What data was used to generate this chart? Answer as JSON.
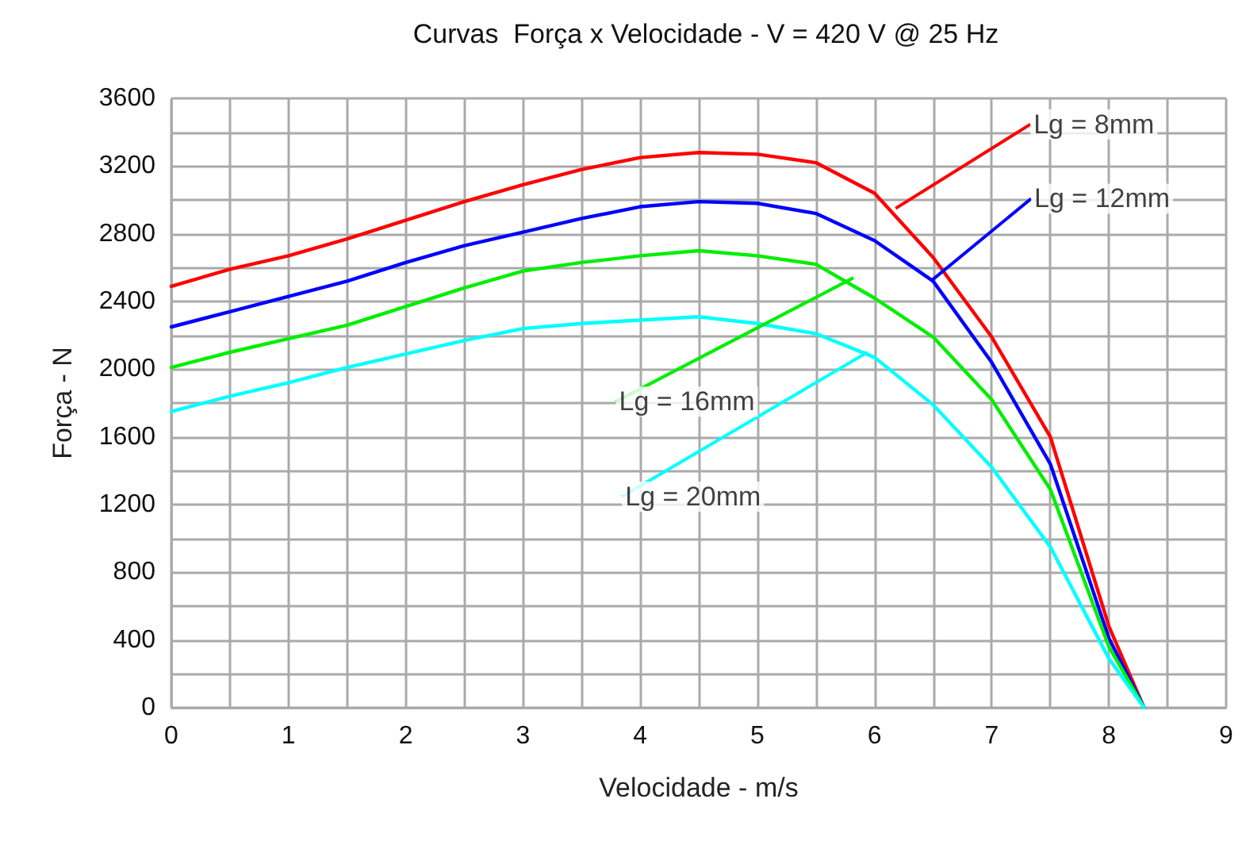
{
  "chart_data": {
    "type": "line",
    "title": "Curvas  Força x Velocidade - V = 420 V @ 25 Hz",
    "xlabel": "Velocidade - m/s",
    "ylabel": "Força - N",
    "x": [
      0,
      0.5,
      1,
      1.5,
      2,
      2.5,
      3,
      3.5,
      4,
      4.5,
      5,
      5.5,
      6,
      6.5,
      7,
      7.5,
      8,
      8.3
    ],
    "series": [
      {
        "color": "#ff0000",
        "values": [
          2490,
          2590,
          2670,
          2770,
          2880,
          2990,
          3090,
          3180,
          3250,
          3280,
          3270,
          3220,
          3040,
          2660,
          2190,
          1600,
          480,
          0
        ]
      },
      {
        "color": "#0000ff",
        "values": [
          2250,
          2340,
          2430,
          2520,
          2630,
          2730,
          2810,
          2890,
          2960,
          2990,
          2980,
          2920,
          2760,
          2520,
          2040,
          1440,
          410,
          0
        ]
      },
      {
        "color": "#00ee00",
        "values": [
          2010,
          2100,
          2180,
          2260,
          2370,
          2480,
          2580,
          2630,
          2670,
          2700,
          2670,
          2620,
          2420,
          2190,
          1820,
          1290,
          360,
          0
        ]
      },
      {
        "color": "#00ffff",
        "values": [
          1750,
          1840,
          1920,
          2010,
          2090,
          2170,
          2240,
          2270,
          2290,
          2310,
          2270,
          2210,
          2070,
          1790,
          1420,
          950,
          290,
          0
        ]
      }
    ],
    "annotations": [
      {
        "text": "Lg = 8mm",
        "x": 6.18,
        "y": 2950
      },
      {
        "text": "Lg = 12mm",
        "x": 6.48,
        "y": 2520
      },
      {
        "text": "Lg = 16mm",
        "x": 5.82,
        "y": 2540
      },
      {
        "text": "Lg = 20mm",
        "x": 5.94,
        "y": 2100
      }
    ],
    "xlim": [
      0,
      9
    ],
    "xticks": [
      0,
      {
        "value": 0.5,
        "label": null
      },
      1,
      {
        "value": 1.5,
        "label": null
      },
      2,
      {
        "value": 2.5,
        "label": null
      },
      3,
      {
        "value": 3.5,
        "label": null
      },
      4,
      {
        "value": 4.5,
        "label": null
      },
      5,
      {
        "value": 5.5,
        "label": null
      },
      6,
      {
        "value": 6.5,
        "label": null
      },
      7,
      {
        "value": 7.5,
        "label": null
      },
      8,
      {
        "value": 8.5,
        "label": null
      },
      9
    ],
    "ylim": [
      0,
      3600
    ],
    "yticks": [
      0,
      {
        "value": 200,
        "label": null
      },
      400,
      {
        "value": 600,
        "label": null
      },
      800,
      {
        "value": 1000,
        "label": null
      },
      1200,
      {
        "value": 1400,
        "label": null
      },
      1600,
      {
        "value": 1800,
        "label": null
      },
      2000,
      {
        "value": 2200,
        "label": null
      },
      2400,
      {
        "value": 2600,
        "label": null
      },
      2800,
      {
        "value": 3000,
        "label": null
      },
      3200,
      {
        "value": 3400,
        "label": null
      },
      3600
    ],
    "grid": true,
    "marker": "none",
    "line_style": "solid"
  }
}
